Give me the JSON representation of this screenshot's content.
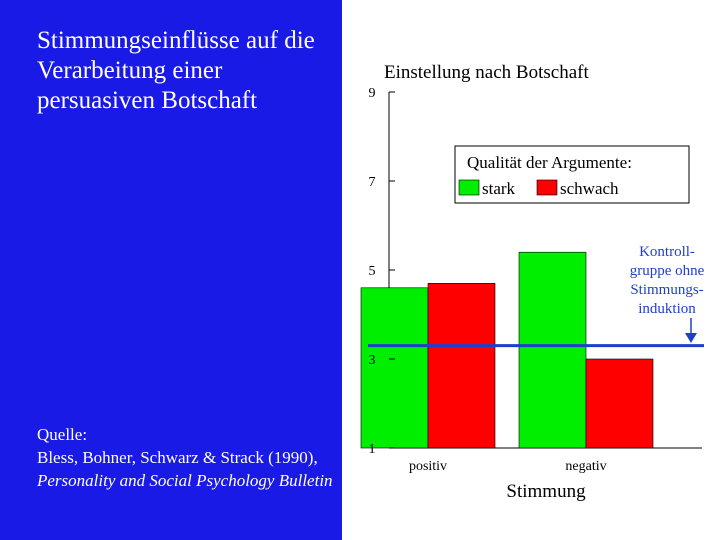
{
  "slide": {
    "title": "Stimmungseinflüsse auf die Verarbeitung einer persuasiven Botschaft",
    "source_label": "Quelle:",
    "source_authors": "Bless, Bohner, Schwarz & Strack (1990),",
    "source_journal": "Personality and Social Psychology Bulletin"
  },
  "colors": {
    "panel": "#1a1ae6",
    "stark": "#00ee00",
    "schwach": "#ff0000",
    "control": "#1e3fcc",
    "text": "#000000"
  },
  "chart_data": {
    "type": "bar",
    "title": "Einstellung nach Botschaft",
    "xlabel": "Stimmung",
    "ylabel": "",
    "ylim": [
      1,
      9
    ],
    "yticks": [
      1,
      3,
      5,
      7,
      9
    ],
    "categories": [
      "positiv",
      "negativ"
    ],
    "legend": {
      "title": "Qualität  der  Argumente:",
      "placement": "top-right"
    },
    "series": [
      {
        "name": "stark",
        "values": [
          4.6,
          5.4
        ]
      },
      {
        "name": "schwach",
        "values": [
          4.7,
          3.0
        ]
      }
    ],
    "reference_line": {
      "value": 3.3,
      "label_lines": [
        "Kontroll-",
        "gruppe ohne",
        "Stimmungs-",
        "induktion"
      ]
    },
    "grid": false
  }
}
